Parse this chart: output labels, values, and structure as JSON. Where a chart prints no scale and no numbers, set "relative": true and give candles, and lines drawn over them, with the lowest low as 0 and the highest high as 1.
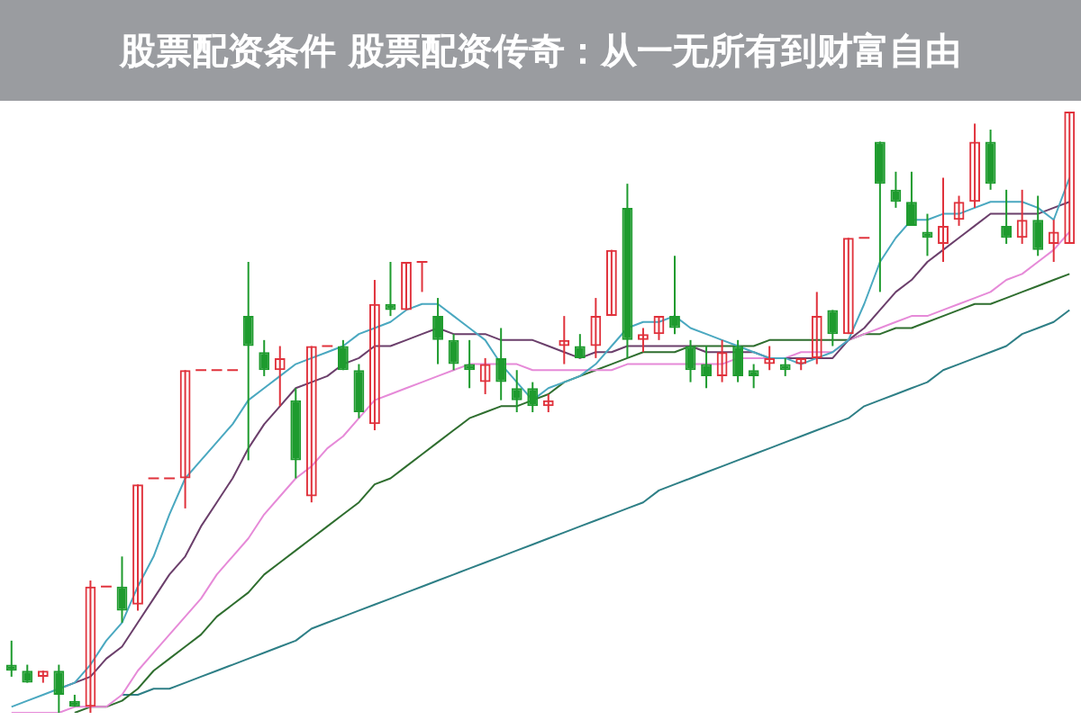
{
  "chart_data": {
    "type": "candlestick",
    "relative": true,
    "title": "股票配资条件 股票配资传奇：从一无所有到财富自由",
    "categories": [
      null,
      null,
      null,
      null,
      null,
      null,
      null,
      null,
      null,
      null,
      null,
      null,
      null,
      null,
      null,
      null,
      null,
      null,
      null,
      null,
      null,
      null,
      null,
      null,
      null,
      null,
      null,
      null,
      null,
      null,
      null,
      null,
      null,
      null,
      null,
      null,
      null,
      null,
      null,
      null,
      null,
      null,
      null,
      null,
      null,
      null,
      null,
      null,
      null,
      null,
      null,
      null,
      null,
      null,
      null,
      null,
      null,
      null,
      null,
      null,
      null,
      null,
      null,
      null,
      null,
      null,
      null,
      null
    ],
    "ohlc": [
      [
        0.08,
        0.12,
        0.06,
        0.07
      ],
      [
        0.07,
        0.08,
        0.05,
        0.05
      ],
      [
        0.06,
        0.07,
        0.05,
        0.07
      ],
      [
        0.07,
        0.08,
        0,
        0.03
      ],
      [
        0.02,
        0.03,
        0.01,
        0.01
      ],
      [
        0.01,
        0.22,
        0,
        0.21
      ],
      [
        0.21,
        0.21,
        0.21,
        0.21
      ],
      [
        0.21,
        0.26,
        0.15,
        0.17
      ],
      [
        0.18,
        0.38,
        0.17,
        0.38
      ],
      [
        0.39,
        0.39,
        0.39,
        0.39
      ],
      [
        0.39,
        0.39,
        0.39,
        0.39
      ],
      [
        0.39,
        0.57,
        0.34,
        0.57
      ],
      [
        0.57,
        0.57,
        0.57,
        0.57
      ],
      [
        0.57,
        0.57,
        0.57,
        0.57
      ],
      [
        0.57,
        0.57,
        0.57,
        0.57
      ],
      [
        0.66,
        0.75,
        0.42,
        0.61
      ],
      [
        0.6,
        0.62,
        0.56,
        0.57
      ],
      [
        0.57,
        0.61,
        0.51,
        0.59
      ],
      [
        0.52,
        0.54,
        0.39,
        0.42
      ],
      [
        0.36,
        0.61,
        0.35,
        0.61
      ],
      [
        0.61,
        0.61,
        0.61,
        0.61
      ],
      [
        0.61,
        0.62,
        0.57,
        0.57
      ],
      [
        0.57,
        0.58,
        0.49,
        0.5
      ],
      [
        0.48,
        0.72,
        0.47,
        0.68
      ],
      [
        0.68,
        0.75,
        0.66,
        0.67
      ],
      [
        0.67,
        0.75,
        0.67,
        0.75
      ],
      [
        0.75,
        0.75,
        0.7,
        0.75
      ],
      [
        0.66,
        0.69,
        0.58,
        0.62
      ],
      [
        0.62,
        0.63,
        0.57,
        0.58
      ],
      [
        0.58,
        0.62,
        0.54,
        0.57
      ],
      [
        0.55,
        0.59,
        0.53,
        0.58
      ],
      [
        0.59,
        0.64,
        0.52,
        0.55
      ],
      [
        0.54,
        0.57,
        0.5,
        0.52
      ],
      [
        0.54,
        0.55,
        0.5,
        0.51
      ],
      [
        0.51,
        0.53,
        0.5,
        0.52
      ],
      [
        0.61,
        0.66,
        0.58,
        0.62
      ],
      [
        0.61,
        0.63,
        0.59,
        0.59
      ],
      [
        0.61,
        0.69,
        0.59,
        0.66
      ],
      [
        0.66,
        0.77,
        0.66,
        0.77
      ],
      [
        0.84,
        0.88,
        0.59,
        0.62
      ],
      [
        0.62,
        0.64,
        0.6,
        0.63
      ],
      [
        0.63,
        0.66,
        0.62,
        0.66
      ],
      [
        0.66,
        0.76,
        0.63,
        0.64
      ],
      [
        0.61,
        0.62,
        0.55,
        0.57
      ],
      [
        0.58,
        0.61,
        0.54,
        0.56
      ],
      [
        0.56,
        0.62,
        0.55,
        0.6
      ],
      [
        0.61,
        0.62,
        0.55,
        0.56
      ],
      [
        0.57,
        0.58,
        0.54,
        0.56
      ],
      [
        0.58,
        0.61,
        0.57,
        0.59
      ],
      [
        0.58,
        0.59,
        0.56,
        0.57
      ],
      [
        0.58,
        0.59,
        0.57,
        0.59
      ],
      [
        0.59,
        0.7,
        0.58,
        0.66
      ],
      [
        0.67,
        0.67,
        0.61,
        0.63
      ],
      [
        0.63,
        0.79,
        0.63,
        0.79
      ],
      [
        0.79,
        0.79,
        0.79,
        0.79
      ],
      [
        0.95,
        0.95,
        0.7,
        0.88
      ],
      [
        0.87,
        0.9,
        0.84,
        0.85
      ],
      [
        0.85,
        0.9,
        0.81,
        0.81
      ],
      [
        0.8,
        0.83,
        0.76,
        0.79
      ],
      [
        0.78,
        0.89,
        0.75,
        0.81
      ],
      [
        0.82,
        0.86,
        0.81,
        0.85
      ],
      [
        0.85,
        0.98,
        0.84,
        0.95
      ],
      [
        0.95,
        0.97,
        0.87,
        0.88
      ],
      [
        0.81,
        0.87,
        0.78,
        0.79
      ],
      [
        0.79,
        0.87,
        0.78,
        0.82
      ],
      [
        0.82,
        0.86,
        0.76,
        0.77
      ],
      [
        0.78,
        0.82,
        0.75,
        0.8
      ],
      [
        0.78,
        1,
        0.78,
        1
      ]
    ],
    "colors": [
      "#1e9b2e",
      "#1e9b2e",
      "#e0323c",
      "#1e9b2e",
      "#1e9b2e",
      "#e0323c",
      "#e0323c",
      "#1e9b2e",
      "#e0323c",
      "#e0323c",
      "#e0323c",
      "#e0323c",
      "#e0323c",
      "#e0323c",
      "#e0323c",
      "#1e9b2e",
      "#1e9b2e",
      "#e0323c",
      "#1e9b2e",
      "#e0323c",
      "#e0323c",
      "#1e9b2e",
      "#1e9b2e",
      "#e0323c",
      "#1e9b2e",
      "#e0323c",
      "#e0323c",
      "#1e9b2e",
      "#1e9b2e",
      "#1e9b2e",
      "#e0323c",
      "#1e9b2e",
      "#1e9b2e",
      "#1e9b2e",
      "#e0323c",
      "#e0323c",
      "#1e9b2e",
      "#e0323c",
      "#e0323c",
      "#1e9b2e",
      "#e0323c",
      "#e0323c",
      "#1e9b2e",
      "#1e9b2e",
      "#1e9b2e",
      "#e0323c",
      "#1e9b2e",
      "#1e9b2e",
      "#e0323c",
      "#1e9b2e",
      "#e0323c",
      "#e0323c",
      "#1e9b2e",
      "#e0323c",
      "#e0323c",
      "#1e9b2e",
      "#1e9b2e",
      "#1e9b2e",
      "#1e9b2e",
      "#e0323c",
      "#e0323c",
      "#e0323c",
      "#1e9b2e",
      "#1e9b2e",
      "#e0323c",
      "#1e9b2e",
      "#e0323c",
      "#e0323c"
    ],
    "series": [
      {
        "type": "line",
        "color": "#4aa8c0",
        "values": [
          0.01,
          0.02,
          0.03,
          0.04,
          0.05,
          0.08,
          0.12,
          0.15,
          0.21,
          0.26,
          0.33,
          0.39,
          0.42,
          0.45,
          0.48,
          0.52,
          0.54,
          0.56,
          0.58,
          0.59,
          0.6,
          0.61,
          0.63,
          0.64,
          0.65,
          0.67,
          0.68,
          0.68,
          0.66,
          0.64,
          0.62,
          0.58,
          0.55,
          0.52,
          0.54,
          0.55,
          0.56,
          0.58,
          0.61,
          0.64,
          0.65,
          0.65,
          0.66,
          0.64,
          0.63,
          0.62,
          0.61,
          0.6,
          0.59,
          0.59,
          0.58,
          0.59,
          0.6,
          0.62,
          0.68,
          0.75,
          0.79,
          0.82,
          0.82,
          0.83,
          0.83,
          0.84,
          0.85,
          0.85,
          0.85,
          0.84,
          0.82,
          0.89
        ]
      },
      {
        "type": "line",
        "color": "#6b3f6b",
        "values": [
          null,
          null,
          null,
          0.04,
          0.05,
          0.06,
          0.09,
          0.11,
          0.15,
          0.19,
          0.23,
          0.26,
          0.31,
          0.35,
          0.39,
          0.44,
          0.48,
          0.51,
          0.54,
          0.55,
          0.56,
          0.58,
          0.59,
          0.61,
          0.61,
          0.62,
          0.63,
          0.64,
          0.63,
          0.63,
          0.63,
          0.62,
          0.62,
          0.62,
          0.61,
          0.6,
          0.59,
          0.6,
          0.6,
          0.61,
          0.61,
          0.61,
          0.61,
          0.61,
          0.6,
          0.6,
          0.6,
          0.6,
          0.59,
          0.59,
          0.59,
          0.59,
          0.59,
          0.62,
          0.64,
          0.67,
          0.7,
          0.72,
          0.75,
          0.77,
          0.79,
          0.81,
          0.83,
          0.83,
          0.83,
          0.83,
          0.84,
          0.85
        ]
      },
      {
        "type": "line",
        "color": "#e68ad8",
        "values": [
          0,
          0,
          0,
          0,
          0.01,
          0.01,
          0.01,
          0.03,
          0.07,
          0.1,
          0.13,
          0.16,
          0.19,
          0.23,
          0.26,
          0.29,
          0.33,
          0.36,
          0.39,
          0.41,
          0.44,
          0.46,
          0.49,
          0.52,
          0.53,
          0.54,
          0.55,
          0.56,
          0.57,
          0.58,
          0.58,
          0.58,
          0.58,
          0.57,
          0.57,
          0.57,
          0.57,
          0.57,
          0.57,
          0.58,
          0.58,
          0.58,
          0.58,
          0.58,
          0.58,
          0.58,
          0.59,
          0.59,
          0.59,
          0.59,
          0.6,
          0.6,
          0.6,
          0.62,
          0.63,
          0.64,
          0.65,
          0.66,
          0.66,
          0.67,
          0.68,
          0.69,
          0.7,
          0.72,
          0.73,
          0.75,
          0.77,
          0.8
        ]
      },
      {
        "type": "line",
        "color": "#2f6e2f",
        "values": [
          null,
          null,
          null,
          null,
          0,
          0.01,
          0.01,
          0.02,
          0.04,
          0.07,
          0.09,
          0.11,
          0.13,
          0.16,
          0.18,
          0.2,
          0.23,
          0.25,
          0.27,
          0.29,
          0.31,
          0.33,
          0.35,
          0.38,
          0.39,
          0.41,
          0.43,
          0.45,
          0.47,
          0.49,
          0.5,
          0.51,
          0.51,
          0.52,
          0.53,
          0.55,
          0.56,
          0.57,
          0.58,
          0.59,
          0.6,
          0.6,
          0.6,
          0.61,
          0.61,
          0.61,
          0.61,
          0.61,
          0.62,
          0.62,
          0.62,
          0.62,
          0.62,
          0.62,
          0.63,
          0.63,
          0.64,
          0.64,
          0.65,
          0.66,
          0.67,
          0.68,
          0.68,
          0.69,
          0.7,
          0.71,
          0.72,
          0.73
        ]
      },
      {
        "type": "line",
        "color": "#2e7f86",
        "values": [
          null,
          null,
          null,
          null,
          null,
          null,
          null,
          0.03,
          0.03,
          0.04,
          0.04,
          0.05,
          0.06,
          0.07,
          0.08,
          0.09,
          0.1,
          0.11,
          0.12,
          0.14,
          0.15,
          0.16,
          0.17,
          0.18,
          0.19,
          0.2,
          0.21,
          0.22,
          0.23,
          0.24,
          0.25,
          0.26,
          0.27,
          0.28,
          0.29,
          0.3,
          0.31,
          0.32,
          0.33,
          0.34,
          0.35,
          0.37,
          0.38,
          0.39,
          0.4,
          0.41,
          0.42,
          0.43,
          0.44,
          0.45,
          0.46,
          0.47,
          0.48,
          0.49,
          0.51,
          0.52,
          0.53,
          0.54,
          0.55,
          0.57,
          0.58,
          0.59,
          0.6,
          0.61,
          0.63,
          0.64,
          0.65,
          0.67
        ]
      }
    ]
  }
}
